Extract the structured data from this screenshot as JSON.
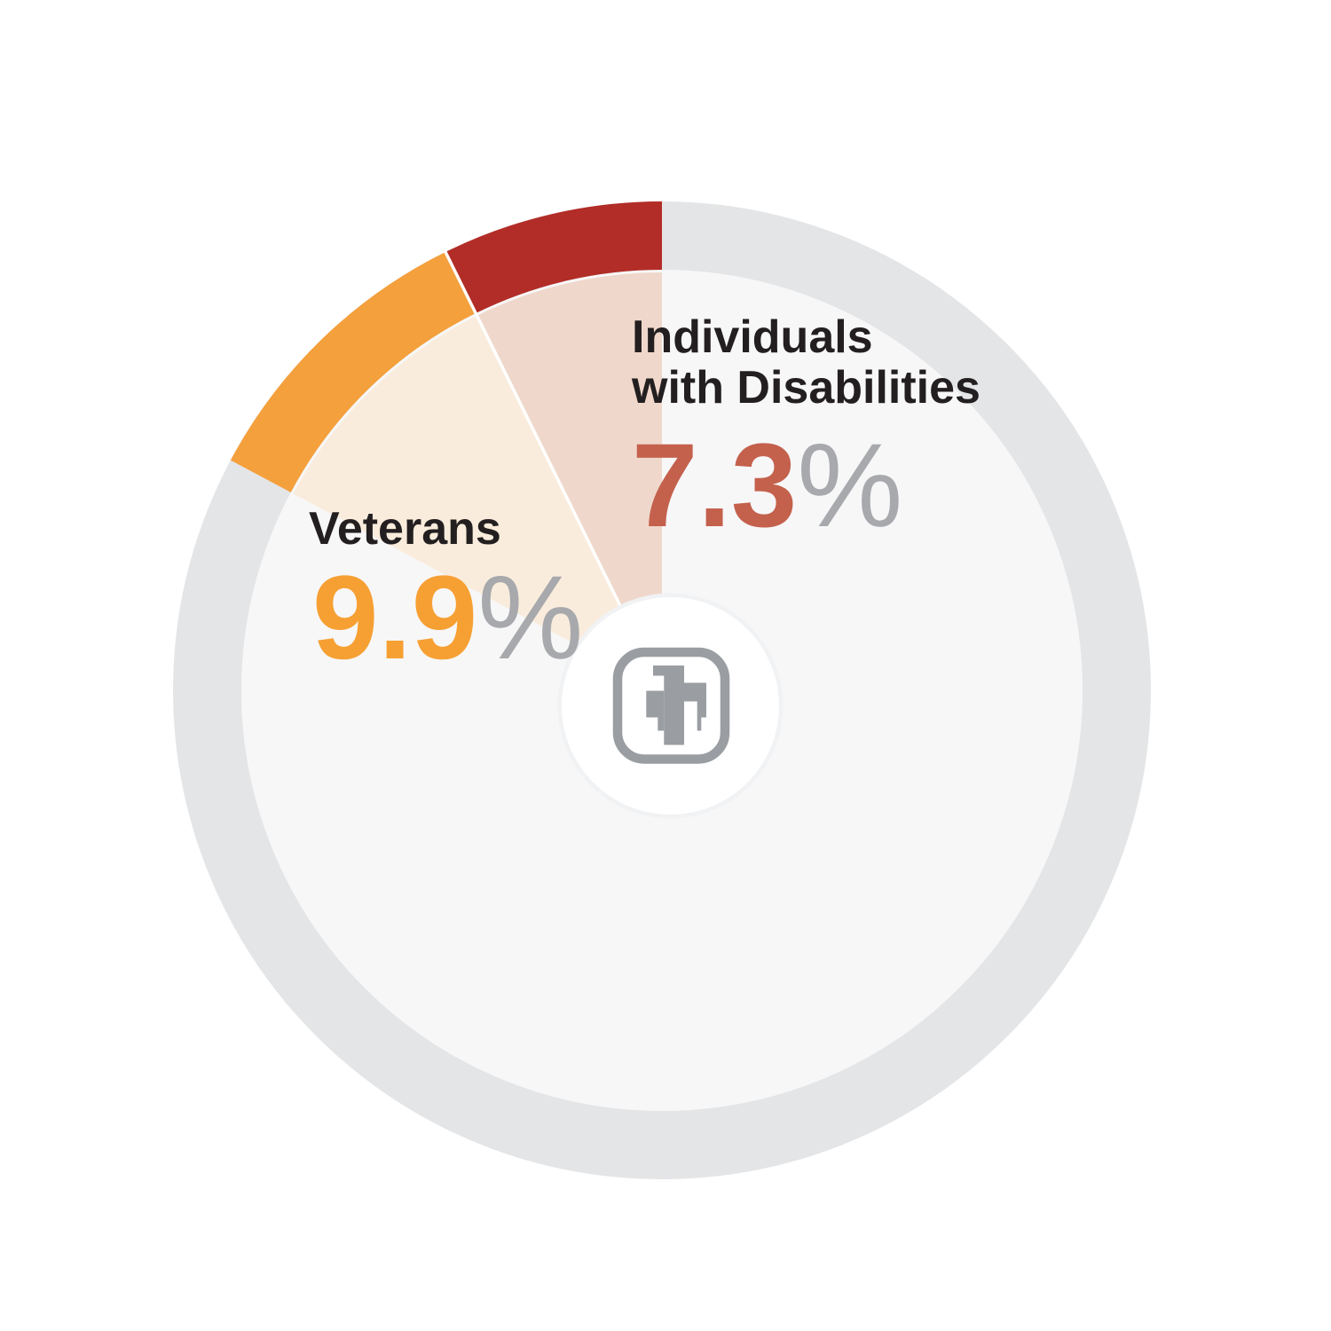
{
  "page": {
    "background_color": "#ffffff",
    "description": "Donut chart infographic showing workforce representation percentages with Sandia thunderbird logo in center"
  },
  "chart": {
    "percent_sign": "%",
    "labels": {
      "disabilities_line1": "Individuals",
      "disabilities_line2": "with Disabilities",
      "veterans": "Veterans"
    },
    "text_colors": {
      "label_black": "#231f20",
      "disabilities_value": "#c4614d",
      "veterans_value": "#f6a033",
      "percent_gray": "#a7a9ac"
    },
    "center_icon": "sandia-thunderbird",
    "center_icon_color": "#9a9da2"
  },
  "chart_data": {
    "type": "pie",
    "subtype": "donut",
    "units": "%",
    "start_angle_deg": 0,
    "direction": "counterclockwise",
    "ring_track_color": "#e4e5e7",
    "inner_disc_color": "#f7f7f8",
    "segments": [
      {
        "label": "Individuals with Disabilities",
        "value": 7.3,
        "highlighted": true,
        "arc_color": "#b22d27",
        "wedge_color": "#efd8cb",
        "value_color": "#c4614d"
      },
      {
        "label": "Veterans",
        "value": 9.9,
        "highlighted": true,
        "arc_color": "#f4a03c",
        "wedge_color": "#faecdc",
        "value_color": "#f6a033"
      },
      {
        "label": "",
        "value": 82.8,
        "highlighted": false,
        "arc_color": "#e4e5e7",
        "wedge_color": "#f7f7f8"
      }
    ]
  }
}
